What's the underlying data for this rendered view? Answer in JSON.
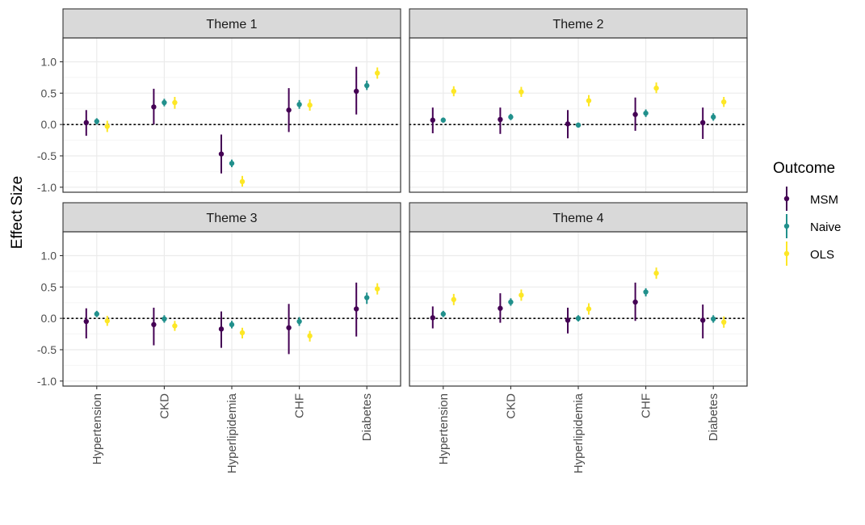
{
  "colors": {
    "MSM": "#440154",
    "Naive": "#21908C",
    "OLS": "#FDE725",
    "strip_bg": "#D9D9D9",
    "panel_border": "#333333",
    "grid_major": "#EBEBEB",
    "grid_minor": "#F5F5F5",
    "zero_line": "#000000"
  },
  "chart_data": {
    "type": "scatter",
    "subtype": "point-range (faceted 2x2)",
    "ylabel": "Effect Size",
    "xlabel": "",
    "ylim": [
      -1.08,
      1.38
    ],
    "y_ticks": [
      1.0,
      0.5,
      0.0,
      -0.5,
      -1.0
    ],
    "y_tick_labels": [
      "1.0",
      "0.5",
      "0.0",
      "-0.5",
      "-1.0"
    ],
    "categories": [
      "Hypertension",
      "CKD",
      "Hyperlipidemia",
      "CHF",
      "Diabetes"
    ],
    "x_tick_labels_rotated": true,
    "reference_line": {
      "y": 0,
      "style": "dotted"
    },
    "grid": true,
    "legend": {
      "title": "Outcome",
      "placement": "right",
      "entries": [
        "MSM",
        "Naive",
        "OLS"
      ]
    },
    "panels": [
      {
        "title": "Theme 1",
        "series": [
          {
            "name": "MSM",
            "values": [
              0.03,
              0.28,
              -0.47,
              0.23,
              0.53
            ],
            "lower": [
              -0.18,
              0.0,
              -0.78,
              -0.12,
              0.16
            ],
            "upper": [
              0.23,
              0.57,
              -0.16,
              0.58,
              0.92
            ]
          },
          {
            "name": "Naive",
            "values": [
              0.05,
              0.35,
              -0.62,
              0.32,
              0.62
            ],
            "lower": [
              0.0,
              0.29,
              -0.68,
              0.25,
              0.55
            ],
            "upper": [
              0.1,
              0.41,
              -0.56,
              0.39,
              0.7
            ]
          },
          {
            "name": "OLS",
            "values": [
              -0.03,
              0.35,
              -0.91,
              0.31,
              0.82
            ],
            "lower": [
              -0.12,
              0.25,
              -0.99,
              0.22,
              0.73
            ],
            "upper": [
              0.06,
              0.44,
              -0.82,
              0.4,
              0.91
            ]
          }
        ]
      },
      {
        "title": "Theme 2",
        "series": [
          {
            "name": "MSM",
            "values": [
              0.07,
              0.08,
              0.01,
              0.16,
              0.03
            ],
            "lower": [
              -0.14,
              -0.15,
              -0.22,
              -0.1,
              -0.23
            ],
            "upper": [
              0.27,
              0.27,
              0.23,
              0.43,
              0.27
            ]
          },
          {
            "name": "Naive",
            "values": [
              0.07,
              0.12,
              -0.01,
              0.18,
              0.12
            ],
            "lower": [
              0.03,
              0.07,
              -0.05,
              0.12,
              0.06
            ],
            "upper": [
              0.11,
              0.17,
              0.03,
              0.24,
              0.18
            ]
          },
          {
            "name": "OLS",
            "values": [
              0.53,
              0.52,
              0.38,
              0.58,
              0.36
            ],
            "lower": [
              0.45,
              0.44,
              0.29,
              0.5,
              0.28
            ],
            "upper": [
              0.61,
              0.6,
              0.47,
              0.67,
              0.44
            ]
          }
        ]
      },
      {
        "title": "Theme 3",
        "series": [
          {
            "name": "MSM",
            "values": [
              -0.05,
              -0.1,
              -0.17,
              -0.15,
              0.15
            ],
            "lower": [
              -0.32,
              -0.43,
              -0.47,
              -0.57,
              -0.29
            ],
            "upper": [
              0.16,
              0.17,
              0.11,
              0.23,
              0.57
            ]
          },
          {
            "name": "Naive",
            "values": [
              0.07,
              -0.01,
              -0.1,
              -0.05,
              0.33
            ],
            "lower": [
              0.02,
              -0.07,
              -0.16,
              -0.12,
              0.23
            ],
            "upper": [
              0.12,
              0.05,
              -0.04,
              0.02,
              0.41
            ]
          },
          {
            "name": "OLS",
            "values": [
              -0.04,
              -0.12,
              -0.23,
              -0.28,
              0.47
            ],
            "lower": [
              -0.12,
              -0.2,
              -0.32,
              -0.37,
              0.38
            ],
            "upper": [
              0.04,
              -0.04,
              -0.15,
              -0.2,
              0.56
            ]
          }
        ]
      },
      {
        "title": "Theme 4",
        "series": [
          {
            "name": "MSM",
            "values": [
              0.01,
              0.16,
              -0.03,
              0.26,
              -0.03
            ],
            "lower": [
              -0.16,
              -0.07,
              -0.24,
              -0.04,
              -0.32
            ],
            "upper": [
              0.19,
              0.4,
              0.17,
              0.57,
              0.22
            ]
          },
          {
            "name": "Naive",
            "values": [
              0.07,
              0.26,
              0.0,
              0.42,
              -0.01
            ],
            "lower": [
              0.02,
              0.2,
              -0.05,
              0.35,
              -0.07
            ],
            "upper": [
              0.12,
              0.32,
              0.05,
              0.48,
              0.05
            ]
          },
          {
            "name": "OLS",
            "values": [
              0.3,
              0.37,
              0.15,
              0.72,
              -0.06
            ],
            "lower": [
              0.21,
              0.28,
              0.06,
              0.63,
              -0.15
            ],
            "upper": [
              0.39,
              0.46,
              0.24,
              0.81,
              0.03
            ]
          }
        ]
      }
    ]
  }
}
